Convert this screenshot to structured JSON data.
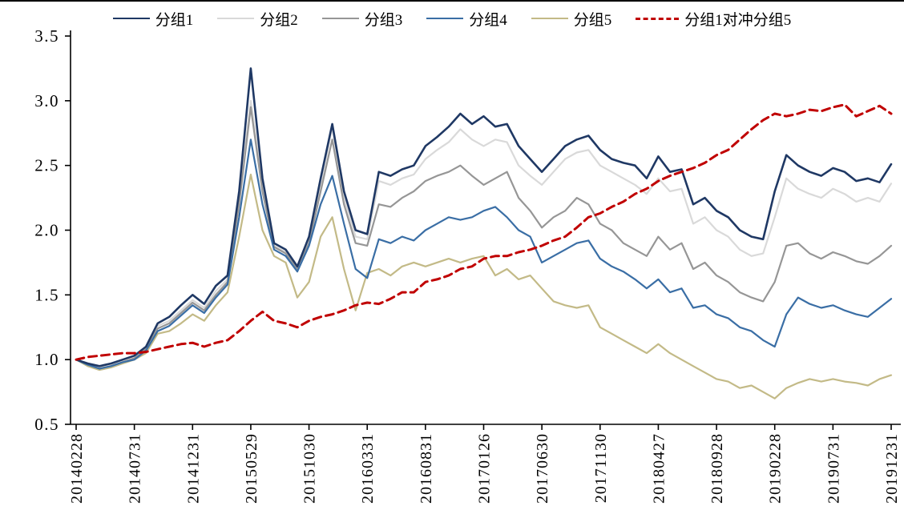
{
  "chart_data": {
    "type": "line",
    "title": "",
    "xlabel": "",
    "ylabel": "",
    "grid": false,
    "legend_position": "top",
    "ylim": [
      0.5,
      3.5
    ],
    "y_ticks": [
      0.5,
      1.0,
      1.5,
      2.0,
      2.5,
      3.0,
      3.5
    ],
    "y_tick_labels": [
      "0.5",
      "1.0",
      "1.5",
      "2.0",
      "2.5",
      "3.0",
      "3.5"
    ],
    "n_points": 71,
    "x_tick_indices": [
      0,
      5,
      10,
      15,
      20,
      25,
      30,
      35,
      40,
      45,
      50,
      55,
      60,
      65,
      70
    ],
    "x_tick_labels": [
      "20140228",
      "20140731",
      "20141231",
      "20150529",
      "20151030",
      "20160331",
      "20160831",
      "20170126",
      "20170630",
      "20171130",
      "20180427",
      "20180928",
      "20190228",
      "20190731",
      "20191231"
    ],
    "series": [
      {
        "name": "分组1",
        "color": "#1F3864",
        "style": "solid",
        "values": [
          1.0,
          0.97,
          0.95,
          0.97,
          1.0,
          1.03,
          1.1,
          1.28,
          1.33,
          1.42,
          1.5,
          1.43,
          1.57,
          1.65,
          2.3,
          3.25,
          2.4,
          1.9,
          1.85,
          1.72,
          1.95,
          2.4,
          2.82,
          2.3,
          2.0,
          1.97,
          2.45,
          2.42,
          2.47,
          2.5,
          2.65,
          2.72,
          2.8,
          2.9,
          2.82,
          2.88,
          2.8,
          2.82,
          2.65,
          2.55,
          2.45,
          2.55,
          2.65,
          2.7,
          2.73,
          2.62,
          2.55,
          2.52,
          2.5,
          2.4,
          2.57,
          2.45,
          2.47,
          2.2,
          2.25,
          2.15,
          2.1,
          2.0,
          1.95,
          1.93,
          2.3,
          2.58,
          2.5,
          2.45,
          2.42,
          2.48,
          2.45,
          2.38,
          2.4,
          2.37,
          2.51
        ]
      },
      {
        "name": "分组2",
        "color": "#D9D9D9",
        "style": "solid",
        "values": [
          1.0,
          0.96,
          0.94,
          0.96,
          0.99,
          1.02,
          1.09,
          1.26,
          1.3,
          1.38,
          1.46,
          1.4,
          1.53,
          1.62,
          2.25,
          3.0,
          2.35,
          1.88,
          1.83,
          1.7,
          1.92,
          2.35,
          2.8,
          2.25,
          1.95,
          1.93,
          2.38,
          2.35,
          2.4,
          2.43,
          2.55,
          2.62,
          2.68,
          2.78,
          2.7,
          2.65,
          2.7,
          2.68,
          2.5,
          2.42,
          2.35,
          2.45,
          2.55,
          2.6,
          2.62,
          2.5,
          2.45,
          2.4,
          2.35,
          2.28,
          2.4,
          2.3,
          2.32,
          2.05,
          2.1,
          2.0,
          1.95,
          1.85,
          1.8,
          1.82,
          2.1,
          2.4,
          2.32,
          2.28,
          2.25,
          2.32,
          2.28,
          2.22,
          2.25,
          2.22,
          2.36
        ]
      },
      {
        "name": "分组3",
        "color": "#969696",
        "style": "solid",
        "values": [
          1.0,
          0.96,
          0.93,
          0.95,
          0.98,
          1.01,
          1.08,
          1.24,
          1.28,
          1.36,
          1.44,
          1.38,
          1.5,
          1.6,
          2.2,
          2.95,
          2.3,
          1.87,
          1.82,
          1.7,
          1.9,
          2.3,
          2.7,
          2.2,
          1.9,
          1.88,
          2.2,
          2.18,
          2.25,
          2.3,
          2.38,
          2.42,
          2.45,
          2.5,
          2.42,
          2.35,
          2.4,
          2.45,
          2.25,
          2.15,
          2.02,
          2.1,
          2.15,
          2.25,
          2.2,
          2.05,
          2.0,
          1.9,
          1.85,
          1.8,
          1.95,
          1.85,
          1.9,
          1.7,
          1.75,
          1.65,
          1.6,
          1.52,
          1.48,
          1.45,
          1.6,
          1.88,
          1.9,
          1.82,
          1.78,
          1.83,
          1.8,
          1.76,
          1.74,
          1.8,
          1.88
        ]
      },
      {
        "name": "分组4",
        "color": "#3A6EA5",
        "style": "solid",
        "values": [
          1.0,
          0.96,
          0.93,
          0.95,
          0.98,
          1.0,
          1.07,
          1.22,
          1.26,
          1.34,
          1.42,
          1.36,
          1.48,
          1.58,
          2.1,
          2.7,
          2.2,
          1.85,
          1.8,
          1.68,
          1.88,
          2.2,
          2.42,
          2.05,
          1.7,
          1.63,
          1.93,
          1.9,
          1.95,
          1.92,
          2.0,
          2.05,
          2.1,
          2.08,
          2.1,
          2.15,
          2.18,
          2.1,
          2.0,
          1.95,
          1.75,
          1.8,
          1.85,
          1.9,
          1.92,
          1.78,
          1.72,
          1.68,
          1.62,
          1.55,
          1.62,
          1.52,
          1.55,
          1.4,
          1.42,
          1.35,
          1.32,
          1.25,
          1.22,
          1.15,
          1.1,
          1.35,
          1.48,
          1.43,
          1.4,
          1.42,
          1.38,
          1.35,
          1.33,
          1.4,
          1.47
        ]
      },
      {
        "name": "分组5",
        "color": "#C3BA87",
        "style": "solid",
        "values": [
          1.0,
          0.95,
          0.92,
          0.94,
          0.97,
          1.0,
          1.05,
          1.2,
          1.22,
          1.28,
          1.35,
          1.3,
          1.42,
          1.52,
          1.95,
          2.43,
          2.0,
          1.8,
          1.75,
          1.48,
          1.6,
          1.95,
          2.1,
          1.7,
          1.38,
          1.67,
          1.7,
          1.65,
          1.72,
          1.75,
          1.72,
          1.75,
          1.78,
          1.75,
          1.78,
          1.8,
          1.65,
          1.7,
          1.62,
          1.65,
          1.55,
          1.45,
          1.42,
          1.4,
          1.42,
          1.25,
          1.2,
          1.15,
          1.1,
          1.05,
          1.12,
          1.05,
          1.0,
          0.95,
          0.9,
          0.85,
          0.83,
          0.78,
          0.8,
          0.75,
          0.7,
          0.78,
          0.82,
          0.85,
          0.83,
          0.85,
          0.83,
          0.82,
          0.8,
          0.85,
          0.88
        ]
      },
      {
        "name": "分组1对冲分组5",
        "color": "#C00000",
        "style": "dashed",
        "values": [
          1.0,
          1.02,
          1.03,
          1.04,
          1.05,
          1.05,
          1.06,
          1.08,
          1.1,
          1.12,
          1.13,
          1.1,
          1.13,
          1.15,
          1.22,
          1.3,
          1.37,
          1.3,
          1.28,
          1.25,
          1.3,
          1.33,
          1.35,
          1.38,
          1.42,
          1.44,
          1.43,
          1.47,
          1.52,
          1.52,
          1.6,
          1.62,
          1.65,
          1.7,
          1.72,
          1.78,
          1.8,
          1.8,
          1.83,
          1.85,
          1.88,
          1.92,
          1.95,
          2.02,
          2.1,
          2.13,
          2.18,
          2.22,
          2.28,
          2.32,
          2.38,
          2.42,
          2.45,
          2.48,
          2.52,
          2.58,
          2.62,
          2.7,
          2.78,
          2.85,
          2.9,
          2.88,
          2.9,
          2.93,
          2.92,
          2.95,
          2.97,
          2.88,
          2.92,
          2.96,
          2.9
        ]
      }
    ]
  },
  "colors": {
    "axis": "#000000",
    "background": "#ffffff",
    "top_rule": "#000000"
  }
}
